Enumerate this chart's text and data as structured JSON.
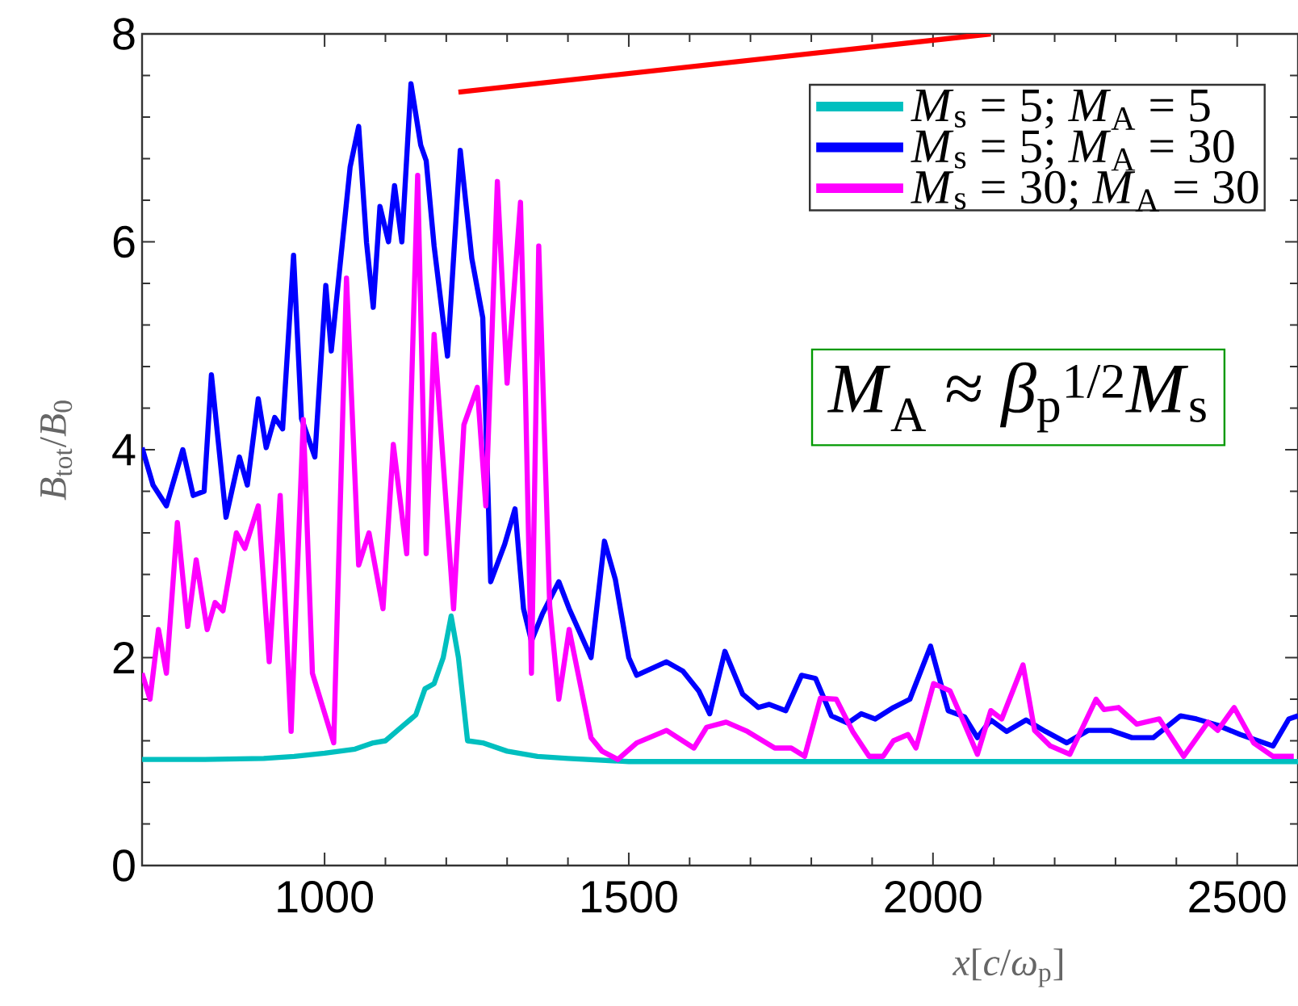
{
  "chart_data": {
    "type": "line",
    "xlabel": "*x*[*c*/*ω*$_{p}$]",
    "ylabel": "*B*$_{tot}$/*B*$_{0}$",
    "xlim": [
      700,
      2600
    ],
    "ylim": [
      0,
      8
    ],
    "xticks": [
      1000,
      1500,
      2000,
      2500
    ],
    "yticks": [
      0,
      2,
      4,
      6,
      8
    ],
    "legend": "top right",
    "grid": false,
    "marker": "none",
    "line_style": "solid",
    "annotations": [
      "*M*$_{A}$ ≈ *β*$_{p}$$^{1/2}$*M*$_{s}$"
    ],
    "series": [
      {
        "name": "*M*$_{s}$ = 5; *M*$_{A}$ = 5",
        "color": "#00bfbf",
        "x": [
          700,
          800,
          900,
          950,
          1000,
          1050,
          1080,
          1100,
          1130,
          1150,
          1165,
          1180,
          1195,
          1208,
          1220,
          1235,
          1260,
          1300,
          1350,
          1400,
          1500,
          2000,
          2600
        ],
        "values": [
          1.02,
          1.02,
          1.03,
          1.05,
          1.08,
          1.12,
          1.18,
          1.2,
          1.35,
          1.45,
          1.7,
          1.75,
          2.0,
          2.4,
          2.0,
          1.2,
          1.18,
          1.1,
          1.05,
          1.03,
          1.0,
          1.0,
          1.0
        ]
      },
      {
        "name": "*M*$_{s}$ = 5; *M*$_{A}$ = 30",
        "color": "#0000ff",
        "x": [
          700,
          718,
          740,
          767,
          784,
          802,
          814,
          838,
          860,
          873,
          891,
          904,
          918,
          931,
          949,
          962,
          984,
          1002,
          1011,
          1042,
          1056,
          1069,
          1080,
          1091,
          1105,
          1115,
          1127,
          1142,
          1158,
          1167,
          1180,
          1202,
          1223,
          1242,
          1260,
          1273,
          1296,
          1313,
          1327,
          1340,
          1358,
          1385,
          1402,
          1438,
          1460,
          1478,
          1500,
          1513,
          1562,
          1589,
          1615,
          1633,
          1658,
          1687,
          1713,
          1731,
          1758,
          1784,
          1807,
          1833,
          1860,
          1882,
          1905,
          1935,
          1962,
          1996,
          2025,
          2052,
          2073,
          2095,
          2121,
          2153,
          2185,
          2220,
          2255,
          2292,
          2327,
          2362,
          2407,
          2433,
          2468,
          2505,
          2559,
          2585,
          2600
        ],
        "values": [
          4.02,
          3.66,
          3.46,
          4.0,
          3.56,
          3.6,
          4.72,
          3.35,
          3.93,
          3.66,
          4.49,
          4.02,
          4.31,
          4.2,
          5.87,
          4.3,
          3.93,
          5.58,
          4.95,
          6.72,
          7.11,
          5.99,
          5.37,
          6.34,
          6.0,
          6.54,
          6.0,
          7.52,
          6.93,
          6.78,
          5.96,
          4.9,
          6.88,
          5.84,
          5.27,
          2.73,
          3.09,
          3.43,
          2.47,
          2.16,
          2.42,
          2.73,
          2.47,
          2.0,
          3.12,
          2.75,
          2.0,
          1.83,
          1.96,
          1.87,
          1.68,
          1.46,
          2.06,
          1.65,
          1.52,
          1.55,
          1.49,
          1.83,
          1.8,
          1.44,
          1.37,
          1.46,
          1.41,
          1.52,
          1.6,
          2.11,
          1.49,
          1.43,
          1.23,
          1.4,
          1.29,
          1.4,
          1.29,
          1.18,
          1.3,
          1.3,
          1.23,
          1.23,
          1.44,
          1.41,
          1.35,
          1.26,
          1.15,
          1.41,
          1.44
        ]
      },
      {
        "name": "*M*$_{s}$ = 30; *M*$_{A}$ = 30",
        "color": "#ff00ff",
        "x": [
          700,
          713,
          727,
          740,
          758,
          775,
          789,
          807,
          820,
          833,
          855,
          869,
          891,
          909,
          927,
          945,
          965,
          980,
          1015,
          1036,
          1056,
          1073,
          1096,
          1113,
          1135,
          1153,
          1167,
          1180,
          1212,
          1229,
          1251,
          1265,
          1284,
          1300,
          1322,
          1330,
          1340,
          1352,
          1370,
          1385,
          1402,
          1438,
          1456,
          1482,
          1513,
          1562,
          1607,
          1628,
          1660,
          1695,
          1740,
          1767,
          1789,
          1815,
          1841,
          1868,
          1895,
          1918,
          1935,
          1959,
          1972,
          2001,
          2028,
          2052,
          2073,
          2095,
          2113,
          2148,
          2167,
          2193,
          2225,
          2268,
          2281,
          2305,
          2335,
          2372,
          2412,
          2452,
          2468,
          2495,
          2527,
          2559,
          2593
        ],
        "values": [
          1.85,
          1.6,
          2.27,
          1.85,
          3.3,
          2.3,
          2.94,
          2.27,
          2.53,
          2.45,
          3.2,
          3.05,
          3.46,
          1.96,
          3.56,
          1.29,
          4.29,
          1.85,
          1.18,
          5.65,
          2.89,
          3.2,
          2.47,
          4.05,
          3.0,
          6.64,
          3.0,
          5.11,
          2.47,
          4.24,
          4.6,
          3.46,
          6.58,
          4.64,
          6.38,
          4.6,
          1.85,
          5.96,
          2.5,
          1.6,
          2.27,
          1.23,
          1.1,
          1.02,
          1.18,
          1.3,
          1.13,
          1.33,
          1.38,
          1.29,
          1.13,
          1.13,
          1.05,
          1.61,
          1.6,
          1.29,
          1.05,
          1.05,
          1.2,
          1.26,
          1.13,
          1.75,
          1.68,
          1.36,
          1.07,
          1.49,
          1.41,
          1.93,
          1.3,
          1.15,
          1.07,
          1.6,
          1.5,
          1.52,
          1.36,
          1.41,
          1.05,
          1.38,
          1.3,
          1.52,
          1.18,
          1.05,
          1.05
        ]
      },
      {
        "color": "#ff0000",
        "x": [
          1220,
          2095
        ],
        "values": [
          7.44,
          8.0
        ]
      }
    ]
  }
}
